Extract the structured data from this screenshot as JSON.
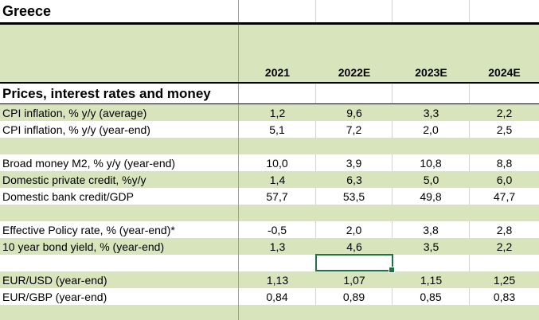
{
  "title": "Greece",
  "columns": [
    "2021",
    "2022E",
    "2023E",
    "2024E"
  ],
  "section": "Prices, interest rates and money",
  "rows": [
    {
      "label": "CPI inflation, % y/y (average)",
      "values": [
        "1,2",
        "9,6",
        "3,3",
        "2,2"
      ]
    },
    {
      "label": "CPI inflation, % y/y (year-end)",
      "values": [
        "5,1",
        "7,2",
        "2,0",
        "2,5"
      ]
    },
    {
      "label": "",
      "values": [
        "",
        "",
        "",
        ""
      ]
    },
    {
      "label": "Broad money M2, % y/y (year-end)",
      "values": [
        "10,0",
        "3,9",
        "10,8",
        "8,8"
      ]
    },
    {
      "label": "Domestic private credit, %y/y",
      "values": [
        "1,4",
        "6,3",
        "5,0",
        "6,0"
      ]
    },
    {
      "label": "Domestic bank credit/GDP",
      "values": [
        "57,7",
        "53,5",
        "49,8",
        "47,7"
      ]
    },
    {
      "label": "",
      "values": [
        "",
        "",
        "",
        ""
      ]
    },
    {
      "label": "Effective Policy rate, % (year-end)*",
      "values": [
        "-0,5",
        "2,0",
        "3,8",
        "2,8"
      ]
    },
    {
      "label": "10 year bond yield, % (year-end)",
      "values": [
        "1,3",
        "4,6",
        "3,5",
        "2,2"
      ]
    },
    {
      "label": "",
      "values": [
        "",
        "",
        "",
        ""
      ]
    },
    {
      "label": "EUR/USD (year-end)",
      "values": [
        "1,13",
        "1,07",
        "1,15",
        "1,25"
      ]
    },
    {
      "label": "EUR/GBP (year-end)",
      "values": [
        "0,84",
        "0,89",
        "0,85",
        "0,83"
      ]
    },
    {
      "label": "",
      "values": [
        "",
        "",
        "",
        ""
      ]
    }
  ],
  "colors": {
    "band": "#d8e4bc",
    "selection": "#217346"
  }
}
